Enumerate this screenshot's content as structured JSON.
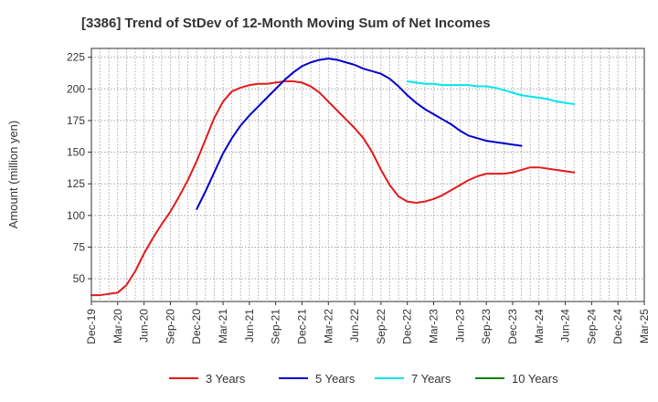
{
  "chart_data": {
    "type": "line",
    "title": "[3386]  Trend of StDev of 12-Month Moving Sum of Net Incomes",
    "ylabel": "Amount (million yen)",
    "xlabel": "",
    "ylim": [
      32,
      232
    ],
    "yticks": [
      50,
      75,
      100,
      125,
      150,
      175,
      200,
      225
    ],
    "x_categories": [
      "Dec-19",
      "Mar-20",
      "Jun-20",
      "Sep-20",
      "Dec-20",
      "Mar-21",
      "Jun-21",
      "Sep-21",
      "Dec-21",
      "Mar-22",
      "Jun-22",
      "Sep-22",
      "Dec-22",
      "Mar-23",
      "Jun-23",
      "Sep-23",
      "Dec-23",
      "Mar-24",
      "Jun-24",
      "Sep-24",
      "Dec-24",
      "Mar-25"
    ],
    "grid": true,
    "legend_position": "bottom",
    "series": [
      {
        "name": "3 Years",
        "color": "#e31a1c",
        "start_index": 0,
        "values": [
          37,
          37,
          38,
          39,
          45,
          56,
          70,
          82,
          93,
          103,
          115,
          128,
          143,
          160,
          177,
          190,
          198,
          201,
          203,
          204,
          204,
          205,
          206,
          206,
          205,
          202,
          197,
          190,
          183,
          176,
          169,
          161,
          150,
          136,
          124,
          115,
          111,
          110,
          111,
          113,
          116,
          120,
          124,
          128,
          131,
          133,
          133,
          133,
          134,
          136,
          138,
          138,
          137,
          136,
          135,
          134
        ]
      },
      {
        "name": "5 Years",
        "color": "#0000cc",
        "start_index": 12,
        "values": [
          105,
          119,
          134,
          149,
          161,
          171,
          179,
          186,
          193,
          200,
          207,
          213,
          218,
          221,
          223,
          224,
          223,
          221,
          219,
          216,
          214,
          212,
          208,
          202,
          195,
          189,
          184,
          180,
          176,
          172,
          167,
          163,
          161,
          159,
          158,
          157,
          156,
          155
        ]
      },
      {
        "name": "7 Years",
        "color": "#00e5ee",
        "start_index": 36,
        "values": [
          206,
          205,
          204,
          204,
          203,
          203,
          203,
          203,
          202,
          202,
          201,
          199,
          197,
          195,
          194,
          193,
          192,
          190,
          189,
          188
        ]
      },
      {
        "name": "10 Years",
        "color": "#008000",
        "start_index": 0,
        "values": []
      }
    ]
  }
}
